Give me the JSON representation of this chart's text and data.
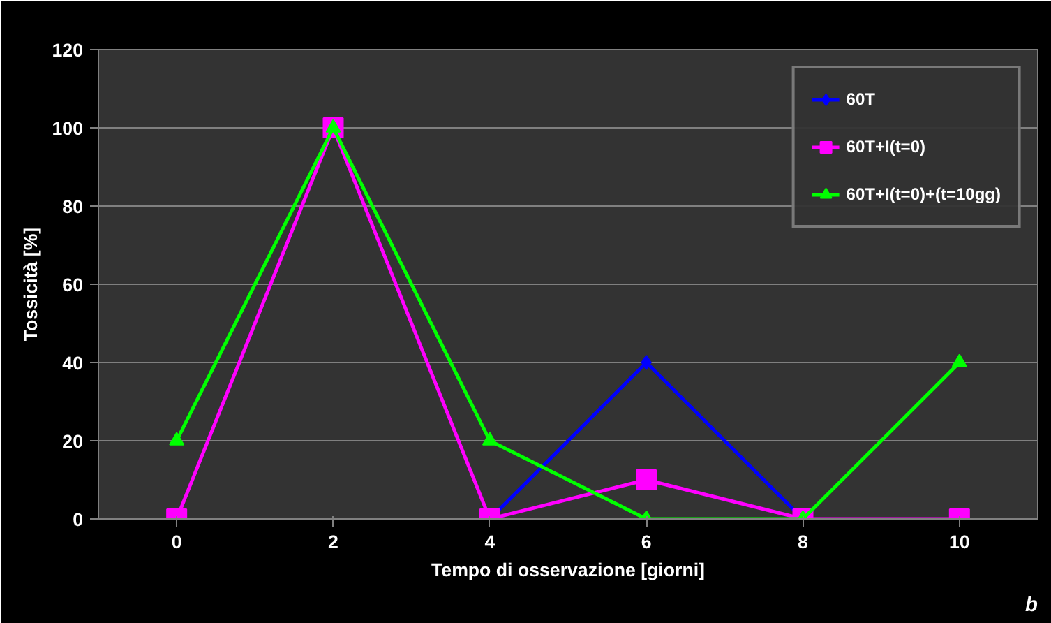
{
  "chart_data": {
    "type": "line",
    "xlabel": "Tempo di osservazione [giorni]",
    "ylabel": "Tossicità [%]",
    "categories": [
      "0",
      "2",
      "4",
      "6",
      "8",
      "10"
    ],
    "series": [
      {
        "name": "60T",
        "color": "#0000ff",
        "marker": "diamond",
        "values": [
          null,
          null,
          0,
          40,
          0,
          null
        ]
      },
      {
        "name": "60T+I(t=0)",
        "color": "#ff00ff",
        "marker": "square",
        "values": [
          0,
          100,
          0,
          10,
          0,
          0
        ]
      },
      {
        "name": "60T+I(t=0)+(t=10gg)",
        "color": "#00ff00",
        "marker": "triangle",
        "values": [
          20,
          100,
          20,
          0,
          0,
          40
        ]
      }
    ],
    "ylim": [
      0,
      120
    ],
    "yticks": [
      0,
      20,
      40,
      60,
      80,
      100,
      120
    ],
    "grid": "y",
    "legend": "top right",
    "annotations": [
      "b"
    ]
  }
}
